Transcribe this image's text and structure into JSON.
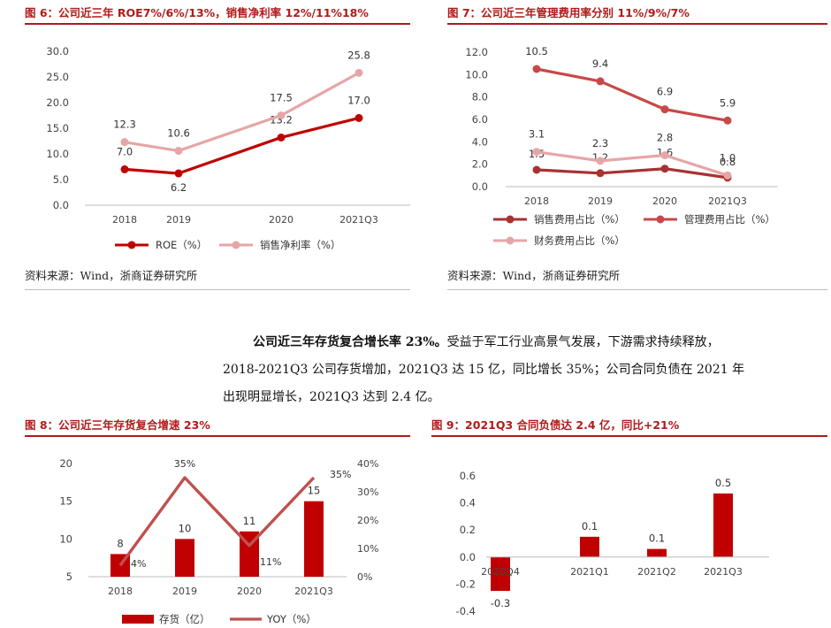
{
  "fig6": {
    "title": "图 6：公司近三年 ROE7%/6%/13%，销售净利率 12%/11%18%",
    "source": "资料来源：Wind，浙商证券研究所"
  },
  "fig7": {
    "title": "图 7：公司近三年管理费用率分别 11%/9%/7%",
    "source": "资料来源：Wind，浙商证券研究所"
  },
  "fig8": {
    "title": "图 8：公司近三年存货复合增速 23%"
  },
  "fig9": {
    "title": "图 9：2021Q3 合同负债达 2.4 亿，同比+21%"
  },
  "paragraph": {
    "bold": "公司近三年存货复合增长率 23%。",
    "rest1": "受益于军工行业高景气发展，下游需求持续释放，",
    "line2": "2018-2021Q3 公司存货增加，2021Q3 达 15 亿，同比增长 35%；公司合同负债在 2021 年",
    "line3": "出现明显增长，2021Q3 达到 2.4 亿。"
  },
  "chart_data": [
    {
      "id": "fig6",
      "type": "line",
      "categories": [
        "2018",
        "2019",
        "2020",
        "2021Q3"
      ],
      "series": [
        {
          "name": "ROE（%）",
          "values": [
            7.0,
            6.2,
            13.2,
            17.0
          ],
          "color": "#c00000",
          "labels": [
            "7.0",
            "6.2",
            "13.2",
            "17.0"
          ]
        },
        {
          "name": "销售净利率（%）",
          "values": [
            12.3,
            10.6,
            17.5,
            25.8
          ],
          "color": "#e6a6a6",
          "labels": [
            "12.3",
            "10.6",
            "17.5",
            "25.8"
          ]
        }
      ],
      "ylim": [
        0,
        30
      ],
      "yticks": [
        "0.0",
        "5.0",
        "10.0",
        "15.0",
        "20.0",
        "25.0",
        "30.0"
      ],
      "legend": "bottom"
    },
    {
      "id": "fig7",
      "type": "line",
      "categories": [
        "2018",
        "2019",
        "2020",
        "2021Q3"
      ],
      "series": [
        {
          "name": "销售费用占比（%）",
          "values": [
            1.5,
            1.2,
            1.6,
            0.8
          ],
          "color": "#a83232",
          "labels": [
            "1.5",
            "1.2",
            "1.6",
            "0.8"
          ]
        },
        {
          "name": "管理费用占比（%）",
          "values": [
            10.5,
            9.4,
            6.9,
            5.9
          ],
          "color": "#c84848",
          "labels": [
            "10.5",
            "9.4",
            "6.9",
            "5.9"
          ]
        },
        {
          "name": "财务费用占比（%）",
          "values": [
            3.1,
            2.3,
            2.8,
            1.0
          ],
          "color": "#e6a6a6",
          "labels": [
            "3.1",
            "2.3",
            "2.8",
            "1.0"
          ]
        }
      ],
      "ylim": [
        0,
        12
      ],
      "yticks": [
        "0.0",
        "2.0",
        "4.0",
        "6.0",
        "8.0",
        "10.0",
        "12.0"
      ],
      "legend": "bottom"
    },
    {
      "id": "fig8",
      "type": "bar",
      "categories": [
        "2018",
        "2019",
        "2020",
        "2021Q3"
      ],
      "series": [
        {
          "name": "存货（亿）",
          "values": [
            8,
            10,
            11,
            15
          ],
          "color": "#c00000",
          "labels": [
            "8",
            "10",
            "11",
            "15"
          ],
          "axis": "left"
        },
        {
          "name": "YOY（%）",
          "values": [
            4,
            35,
            11,
            35
          ],
          "color": "#c0504d",
          "labels": [
            "4%",
            "35%",
            "11%",
            "35%"
          ],
          "axis": "right",
          "type": "line"
        }
      ],
      "ylim": [
        5,
        20
      ],
      "yticks": [
        "5",
        "10",
        "15",
        "20"
      ],
      "y2lim": [
        0,
        40
      ],
      "y2ticks": [
        "0%",
        "10%",
        "20%",
        "30%",
        "40%"
      ],
      "legend": "bottom"
    },
    {
      "id": "fig9",
      "type": "bar",
      "categories": [
        "2020Q4",
        "2021Q1",
        "2021Q2",
        "2021Q3"
      ],
      "values": [
        -0.25,
        0.15,
        0.06,
        0.47
      ],
      "labels": [
        "-0.3",
        "0.1",
        "0.1",
        "0.5"
      ],
      "color": "#c00000",
      "ylim": [
        -0.4,
        0.6
      ],
      "yticks": [
        "-0.4",
        "-0.2",
        "0.0",
        "0.2",
        "0.4",
        "0.6"
      ]
    }
  ]
}
